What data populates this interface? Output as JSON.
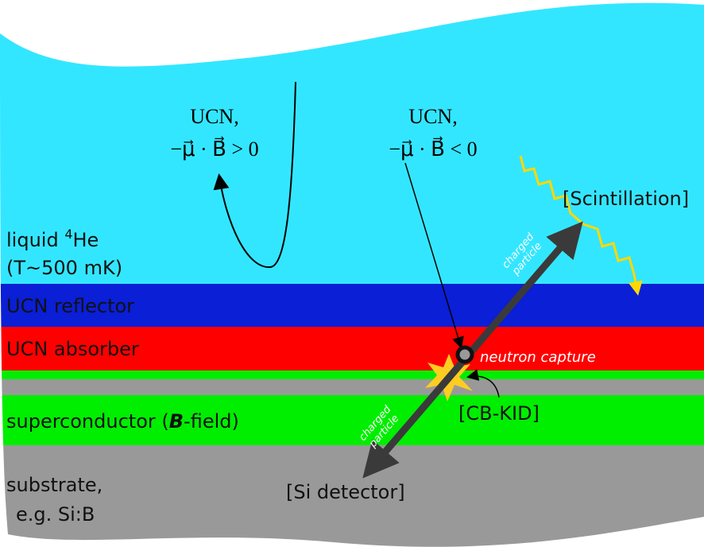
{
  "labels": {
    "ucn_up": {
      "name": "UCN,",
      "condition": "−μ⃗ · B⃗ > 0"
    },
    "ucn_down": {
      "name": "UCN,",
      "condition": "−μ⃗ · B⃗ < 0"
    },
    "scintillation": "[Scintillation]",
    "helium": {
      "prefix": "liquid ",
      "superscript": "4",
      "element": "He",
      "temperature": "(T~500 mK)"
    },
    "reflector": "UCN reflector",
    "absorber": "UCN absorber",
    "neutron_capture": "neutron capture",
    "cb_kid": "[CB-KID]",
    "superconductor": {
      "before": "superconductor (",
      "field": "B",
      "after": "-field)"
    },
    "charged_particle_up": {
      "line1": "charged",
      "line2": "particle"
    },
    "charged_particle_down": {
      "line1": "charged",
      "line2": "particle"
    },
    "si_detector": "[Si detector]",
    "substrate": {
      "line1": "substrate,",
      "line2": "e.g. Si:B"
    }
  }
}
